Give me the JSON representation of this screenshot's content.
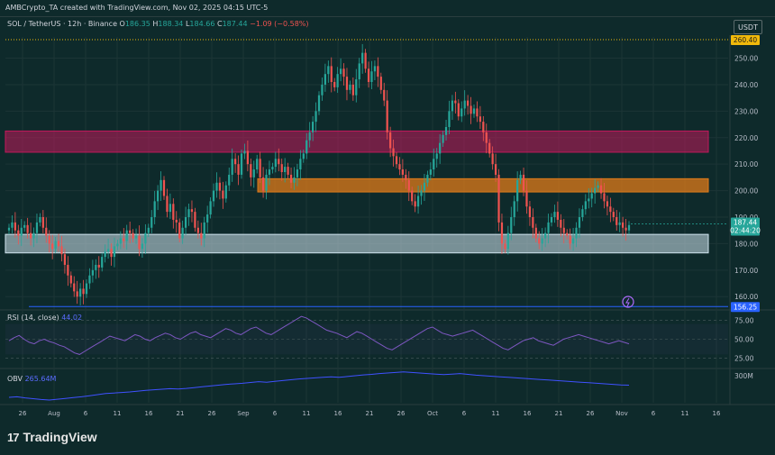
{
  "header": {
    "attribution": "AMBCrypto_TA created with TradingView.com, Nov 02, 2025 04:15 UTC-5"
  },
  "symbol": {
    "title": "SOL / TetherUS · 12h · Binance",
    "o_label": "O",
    "o": "186.35",
    "h_label": "H",
    "h": "188.34",
    "l_label": "L",
    "l": "184.66",
    "c_label": "C",
    "c": "187.44",
    "change": "−1.09 (−0.58%)"
  },
  "currency_button": "USDT",
  "price_badges": {
    "level_top": "260.40",
    "last": "187.44",
    "countdown": "02:44:20",
    "level_bottom": "156.25"
  },
  "rsi_pane": {
    "label": "RSI (14, close)",
    "value": "44.02"
  },
  "obv_pane": {
    "label": "OBV",
    "value": "265.64M"
  },
  "brand": {
    "logo": "17",
    "name": "TradingView"
  },
  "colors": {
    "background": "#0e2a2b",
    "up": "#26a69a",
    "down": "#ef5350",
    "zone_red": "#c2185b",
    "zone_orange": "#e07b1a",
    "zone_white": "#cfe3ee",
    "rsi_line": "#7e57c2",
    "obv_line": "#3f51ff",
    "level_line": "#f0b90b",
    "support_line": "#2962ff"
  },
  "chart_data": [
    {
      "type": "candlestick",
      "title": "SOL / TetherUS · 12h · Binance",
      "ylim": [
        156,
        258
      ],
      "y_ticks": [
        "250.00",
        "240.00",
        "230.00",
        "220.00",
        "210.00",
        "200.00",
        "190.00",
        "180.00",
        "170.00",
        "160.00"
      ],
      "x_ticks": [
        "26",
        "Aug",
        "6",
        "11",
        "16",
        "21",
        "26",
        "Sep",
        "6",
        "11",
        "16",
        "21",
        "26",
        "Oct",
        "6",
        "11",
        "16",
        "21",
        "26",
        "Nov",
        "6",
        "11",
        "16"
      ],
      "zones": [
        {
          "name": "resistance",
          "from": 214.5,
          "to": 222.5,
          "x_from_tick": 0,
          "x_to_tick": 22
        },
        {
          "name": "mid",
          "from": 199.5,
          "to": 204.5,
          "x_from_tick": 8,
          "x_to_tick": 22
        },
        {
          "name": "support",
          "from": 176.5,
          "to": 183.5,
          "x_from_tick": 0,
          "x_to_tick": 22
        }
      ],
      "levels": [
        {
          "value": 260.4,
          "style": "dotted",
          "color": "#f0b90b"
        },
        {
          "value": 156.25,
          "style": "solid",
          "color": "#2962ff"
        }
      ],
      "closes": [
        186,
        188,
        185,
        183,
        186,
        187,
        184,
        182,
        184,
        188,
        190,
        186,
        183,
        180,
        178,
        181,
        179,
        176,
        172,
        168,
        165,
        162,
        160,
        163,
        161,
        165,
        168,
        170,
        172,
        171,
        175,
        177,
        178,
        175,
        179,
        180,
        182,
        181,
        185,
        184,
        182,
        183,
        178,
        180,
        184,
        186,
        190,
        196,
        200,
        204,
        198,
        192,
        195,
        189,
        188,
        182,
        186,
        190,
        193,
        192,
        186,
        184,
        182,
        188,
        191,
        196,
        200,
        203,
        200,
        197,
        202,
        206,
        212,
        210,
        206,
        214,
        215,
        210,
        205,
        208,
        212,
        205,
        200,
        206,
        208,
        209,
        212,
        210,
        207,
        209,
        206,
        203,
        205,
        208,
        212,
        214,
        219,
        222,
        226,
        230,
        236,
        240,
        244,
        247,
        241,
        239,
        244,
        246,
        243,
        238,
        240,
        236,
        242,
        248,
        252,
        246,
        241,
        245,
        247,
        243,
        238,
        234,
        222,
        216,
        213,
        210,
        208,
        206,
        204,
        200,
        196,
        194,
        198,
        200,
        203,
        206,
        208,
        212,
        214,
        218,
        221,
        224,
        230,
        234,
        233,
        228,
        231,
        234,
        232,
        229,
        231,
        228,
        226,
        222,
        218,
        214,
        210,
        206,
        188,
        180,
        178,
        184,
        190,
        196,
        204,
        206,
        200,
        194,
        190,
        186,
        182,
        180,
        182,
        184,
        188,
        190,
        192,
        189,
        186,
        184,
        183,
        180,
        182,
        186,
        190,
        193,
        196,
        197,
        199,
        201,
        202,
        199,
        196,
        194,
        192,
        190,
        187,
        188,
        186,
        185,
        187
      ]
    },
    {
      "type": "line",
      "title": "RSI (14, close)",
      "ylim": [
        15,
        85
      ],
      "y_ticks": [
        "75.00",
        "50.00",
        "25.00"
      ],
      "values": [
        48,
        52,
        55,
        50,
        46,
        44,
        48,
        50,
        47,
        45,
        42,
        40,
        36,
        32,
        30,
        34,
        38,
        42,
        46,
        50,
        54,
        52,
        50,
        48,
        52,
        56,
        54,
        50,
        48,
        52,
        55,
        58,
        56,
        52,
        50,
        54,
        58,
        60,
        56,
        54,
        52,
        56,
        60,
        64,
        62,
        58,
        56,
        60,
        64,
        66,
        62,
        58,
        56,
        60,
        64,
        68,
        72,
        76,
        80,
        78,
        74,
        70,
        66,
        62,
        60,
        58,
        55,
        52,
        56,
        60,
        58,
        54,
        50,
        46,
        42,
        38,
        36,
        40,
        44,
        48,
        52,
        56,
        60,
        64,
        66,
        62,
        58,
        56,
        54,
        56,
        58,
        60,
        62,
        58,
        54,
        50,
        46,
        42,
        38,
        36,
        40,
        44,
        48,
        50,
        52,
        48,
        46,
        44,
        42,
        46,
        50,
        52,
        54,
        56,
        54,
        52,
        50,
        48,
        46,
        44,
        46,
        48,
        46,
        44
      ]
    },
    {
      "type": "line",
      "title": "OBV",
      "y_ticks": [
        "300M"
      ],
      "values": [
        220,
        222,
        218,
        215,
        212,
        210,
        213,
        216,
        219,
        222,
        226,
        230,
        234,
        236,
        238,
        240,
        243,
        246,
        248,
        250,
        252,
        251,
        253,
        256,
        259,
        262,
        265,
        268,
        270,
        272,
        275,
        278,
        276,
        279,
        282,
        285,
        288,
        290,
        292,
        294,
        296,
        294,
        297,
        300,
        303,
        305,
        308,
        310,
        312,
        314,
        312,
        310,
        308,
        306,
        304,
        306,
        308,
        305,
        302,
        300,
        298,
        296,
        294,
        292,
        290,
        288,
        286,
        284,
        282,
        280,
        278,
        276,
        274,
        272,
        270,
        268,
        266,
        265
      ]
    }
  ]
}
